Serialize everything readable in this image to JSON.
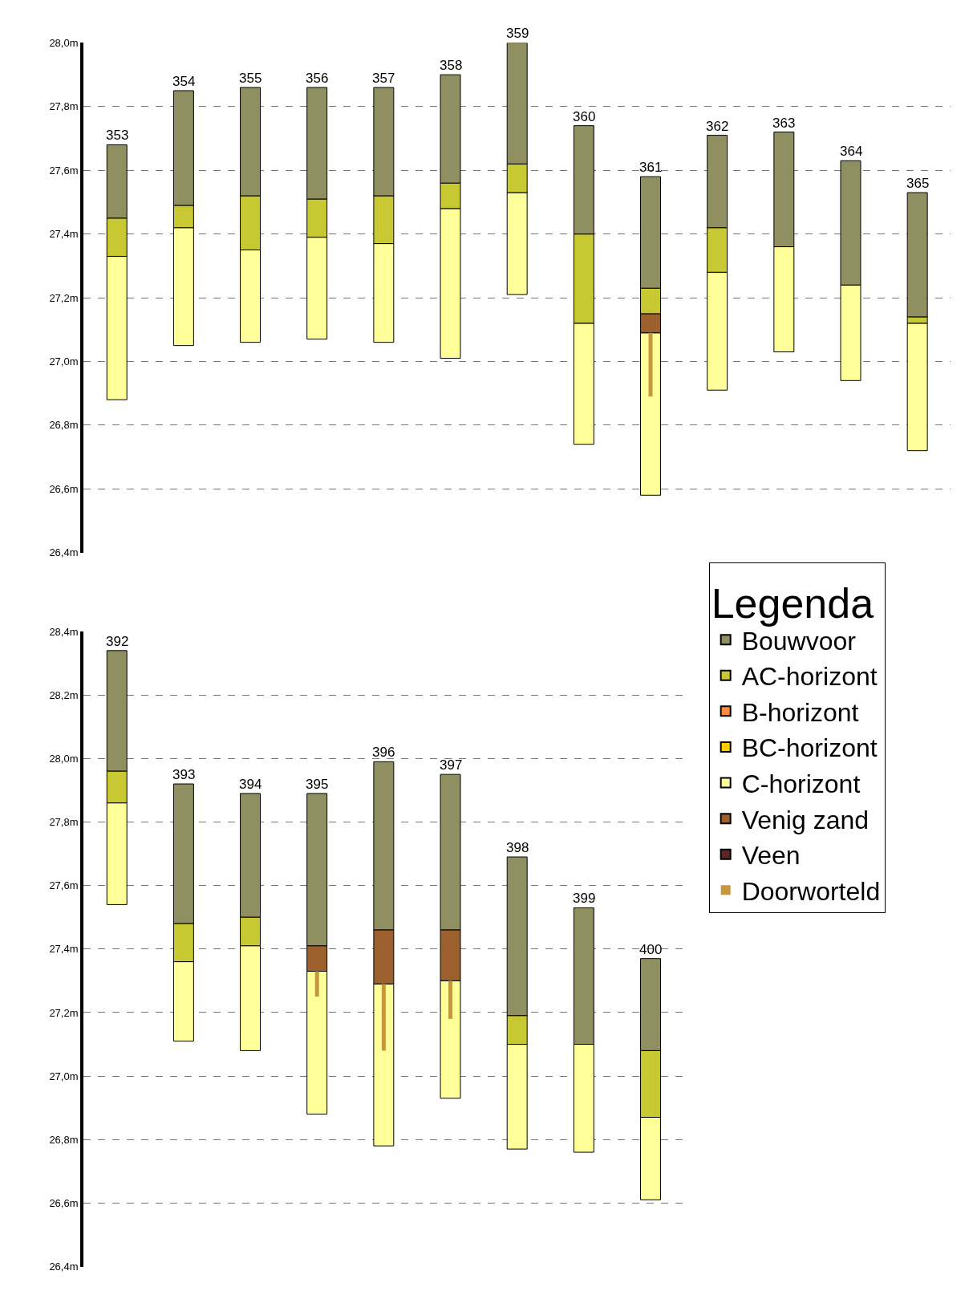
{
  "chart_data": [
    {
      "type": "bar",
      "categories": [
        "353",
        "354",
        "355",
        "356",
        "357",
        "358",
        "359",
        "360",
        "361",
        "362",
        "363",
        "364",
        "365"
      ],
      "series": [
        {
          "color": "#ffff99",
          "base": [
            26.88,
            27.05,
            27.06,
            27.07,
            27.06,
            27.01,
            27.21,
            26.74,
            26.58,
            26.91,
            27.03,
            26.94,
            26.72
          ],
          "values": [
            0.45,
            0.37,
            0.29,
            0.32,
            0.31,
            0.47,
            0.32,
            0.38,
            0.51,
            0.37,
            0.33,
            0.3,
            0.4
          ]
        },
        {
          "color": "#9c5f2e",
          "base": [
            null,
            null,
            null,
            null,
            null,
            null,
            null,
            null,
            27.09,
            null,
            null,
            null,
            null
          ],
          "values": [
            null,
            null,
            null,
            null,
            null,
            null,
            null,
            null,
            0.06,
            null,
            null,
            null,
            null
          ]
        },
        {
          "color": "#c8c832",
          "base": [
            27.33,
            27.42,
            27.35,
            27.39,
            27.37,
            27.48,
            27.53,
            27.12,
            27.15,
            27.28,
            null,
            null,
            27.12
          ],
          "values": [
            0.12,
            0.07,
            0.17,
            0.12,
            0.15,
            0.08,
            0.09,
            0.28,
            0.08,
            0.14,
            null,
            null,
            0.02
          ]
        },
        {
          "color": "#8f8f62",
          "base": [
            27.45,
            27.49,
            27.52,
            27.51,
            27.52,
            27.56,
            27.62,
            27.4,
            27.23,
            27.42,
            27.36,
            27.24,
            27.14
          ],
          "values": [
            0.23,
            0.36,
            0.34,
            0.35,
            0.34,
            0.34,
            0.38,
            0.34,
            0.35,
            0.29,
            0.36,
            0.39,
            0.39
          ]
        },
        {
          "line_style": "solid",
          "color": "#c8963c",
          "base": [
            null,
            null,
            null,
            null,
            null,
            null,
            null,
            null,
            26.89,
            null,
            null,
            null,
            null
          ],
          "values": [
            null,
            null,
            null,
            null,
            null,
            null,
            null,
            null,
            0.2,
            null,
            null,
            null,
            null
          ]
        }
      ],
      "ylim": [
        26.4,
        28.0
      ],
      "yticks": [
        {
          "value": 26.4,
          "label": "26,4m"
        },
        {
          "value": 26.6,
          "label": "26,6m"
        },
        {
          "value": 26.8,
          "label": "26,8m"
        },
        {
          "value": 27.0,
          "label": "27,0m"
        },
        {
          "value": 27.2,
          "label": "27,2m"
        },
        {
          "value": 27.4,
          "label": "27,4m"
        },
        {
          "value": 27.6,
          "label": "27,6m"
        },
        {
          "value": 27.8,
          "label": "27,8m"
        },
        {
          "value": 28.0,
          "label": "28,0m"
        }
      ],
      "grid": "y",
      "tick_labels": "y"
    },
    {
      "type": "bar",
      "categories": [
        "392",
        "393",
        "394",
        "395",
        "396",
        "397",
        "398",
        "399",
        "400"
      ],
      "series": [
        {
          "name": "Bouwvoor",
          "color": "#8f8f62",
          "base": [
            27.96,
            27.48,
            27.5,
            27.41,
            27.46,
            27.46,
            27.19,
            27.1,
            27.08
          ],
          "values": [
            0.38,
            0.44,
            0.39,
            0.48,
            0.53,
            0.49,
            0.5,
            0.43,
            0.29
          ]
        },
        {
          "name": "AC-horizont",
          "color": "#c8c832",
          "base": [
            27.86,
            27.36,
            27.41,
            null,
            null,
            null,
            27.1,
            null,
            26.87
          ],
          "values": [
            0.1,
            0.12,
            0.09,
            null,
            null,
            null,
            0.09,
            null,
            0.21
          ]
        },
        {
          "name": "B-horizont",
          "color": "#ff8c3c",
          "values": [
            null,
            null,
            null,
            null,
            null,
            null,
            null,
            null,
            null
          ]
        },
        {
          "name": "BC-horizont",
          "color": "#ffcc00",
          "values": [
            null,
            null,
            null,
            null,
            null,
            null,
            null,
            null,
            null
          ]
        },
        {
          "name": "C-horizont",
          "color": "#ffff99",
          "base": [
            27.54,
            27.11,
            27.08,
            26.88,
            26.78,
            26.93,
            26.77,
            26.76,
            26.61
          ],
          "values": [
            0.32,
            0.25,
            0.33,
            0.45,
            0.51,
            0.37,
            0.33,
            0.34,
            0.26
          ]
        },
        {
          "name": "Venig zand",
          "color": "#9c5f2e",
          "base": [
            null,
            null,
            null,
            27.33,
            27.29,
            27.3,
            null,
            null,
            null
          ],
          "values": [
            null,
            null,
            null,
            0.08,
            0.17,
            0.16,
            null,
            null,
            null
          ]
        },
        {
          "name": "Veen",
          "color": "#5c2626",
          "values": [
            null,
            null,
            null,
            null,
            null,
            null,
            null,
            null,
            null
          ]
        },
        {
          "name": "Doorworteld",
          "line_style": "solid",
          "color": "#c8963c",
          "base": [
            null,
            null,
            null,
            27.25,
            27.08,
            27.18,
            null,
            null,
            null
          ],
          "values": [
            null,
            null,
            null,
            0.08,
            0.21,
            0.12,
            null,
            null,
            null
          ]
        }
      ],
      "ylim": [
        26.4,
        28.4
      ],
      "yticks": [
        {
          "value": 26.4,
          "label": "26,4m"
        },
        {
          "value": 26.6,
          "label": "26,6m"
        },
        {
          "value": 26.8,
          "label": "26,8m"
        },
        {
          "value": 27.0,
          "label": "27,0m"
        },
        {
          "value": 27.2,
          "label": "27,2m"
        },
        {
          "value": 27.4,
          "label": "27,4m"
        },
        {
          "value": 27.6,
          "label": "27,6m"
        },
        {
          "value": 27.8,
          "label": "27,8m"
        },
        {
          "value": 28.0,
          "label": "28,0m"
        },
        {
          "value": 28.2,
          "label": "28,2m"
        },
        {
          "value": 28.4,
          "label": "28,4m"
        }
      ],
      "grid": "y",
      "tick_labels": "y",
      "legend": "right",
      "legend_title": "Legenda"
    }
  ]
}
